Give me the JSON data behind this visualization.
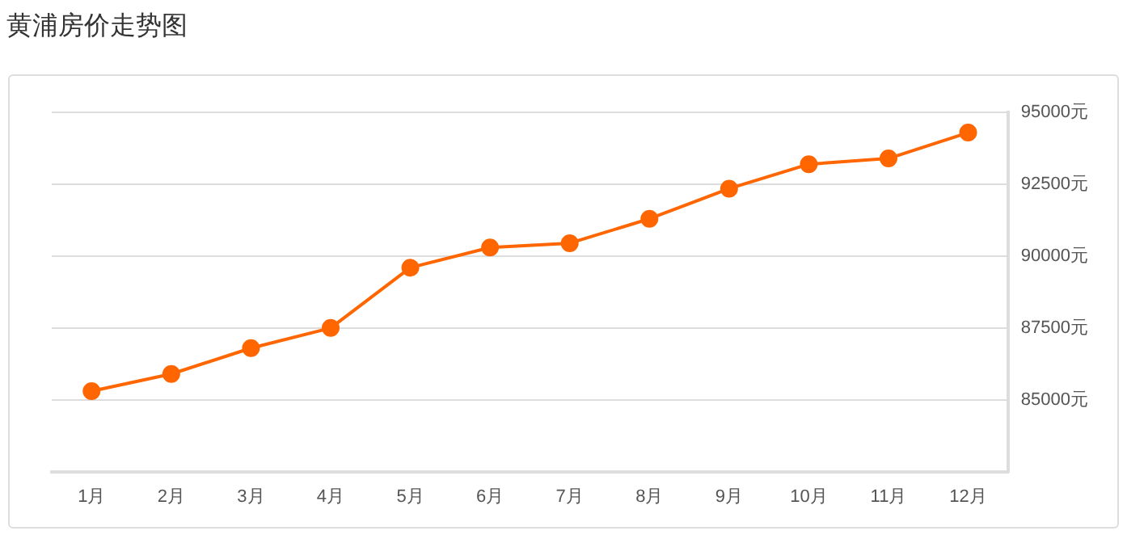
{
  "chart_data": {
    "type": "line",
    "title": "黄浦房价走势图",
    "categories": [
      "1月",
      "2月",
      "3月",
      "4月",
      "5月",
      "6月",
      "7月",
      "8月",
      "9月",
      "10月",
      "11月",
      "12月"
    ],
    "series": [
      {
        "color": "#ff6600",
        "values": [
          85300,
          85900,
          86800,
          87500,
          89600,
          90300,
          90450,
          91300,
          92350,
          93200,
          93400,
          94300
        ]
      }
    ],
    "ylim": [
      82500,
      95000
    ],
    "yticks": [
      {
        "value": 85000,
        "label": "85000元"
      },
      {
        "value": 87500,
        "label": "87500元"
      },
      {
        "value": 90000,
        "label": "90000元"
      },
      {
        "value": 92500,
        "label": "92500元"
      },
      {
        "value": 95000,
        "label": "95000元"
      }
    ],
    "grid": "y",
    "legend": false,
    "marker": "circle",
    "line_style": "solid"
  }
}
